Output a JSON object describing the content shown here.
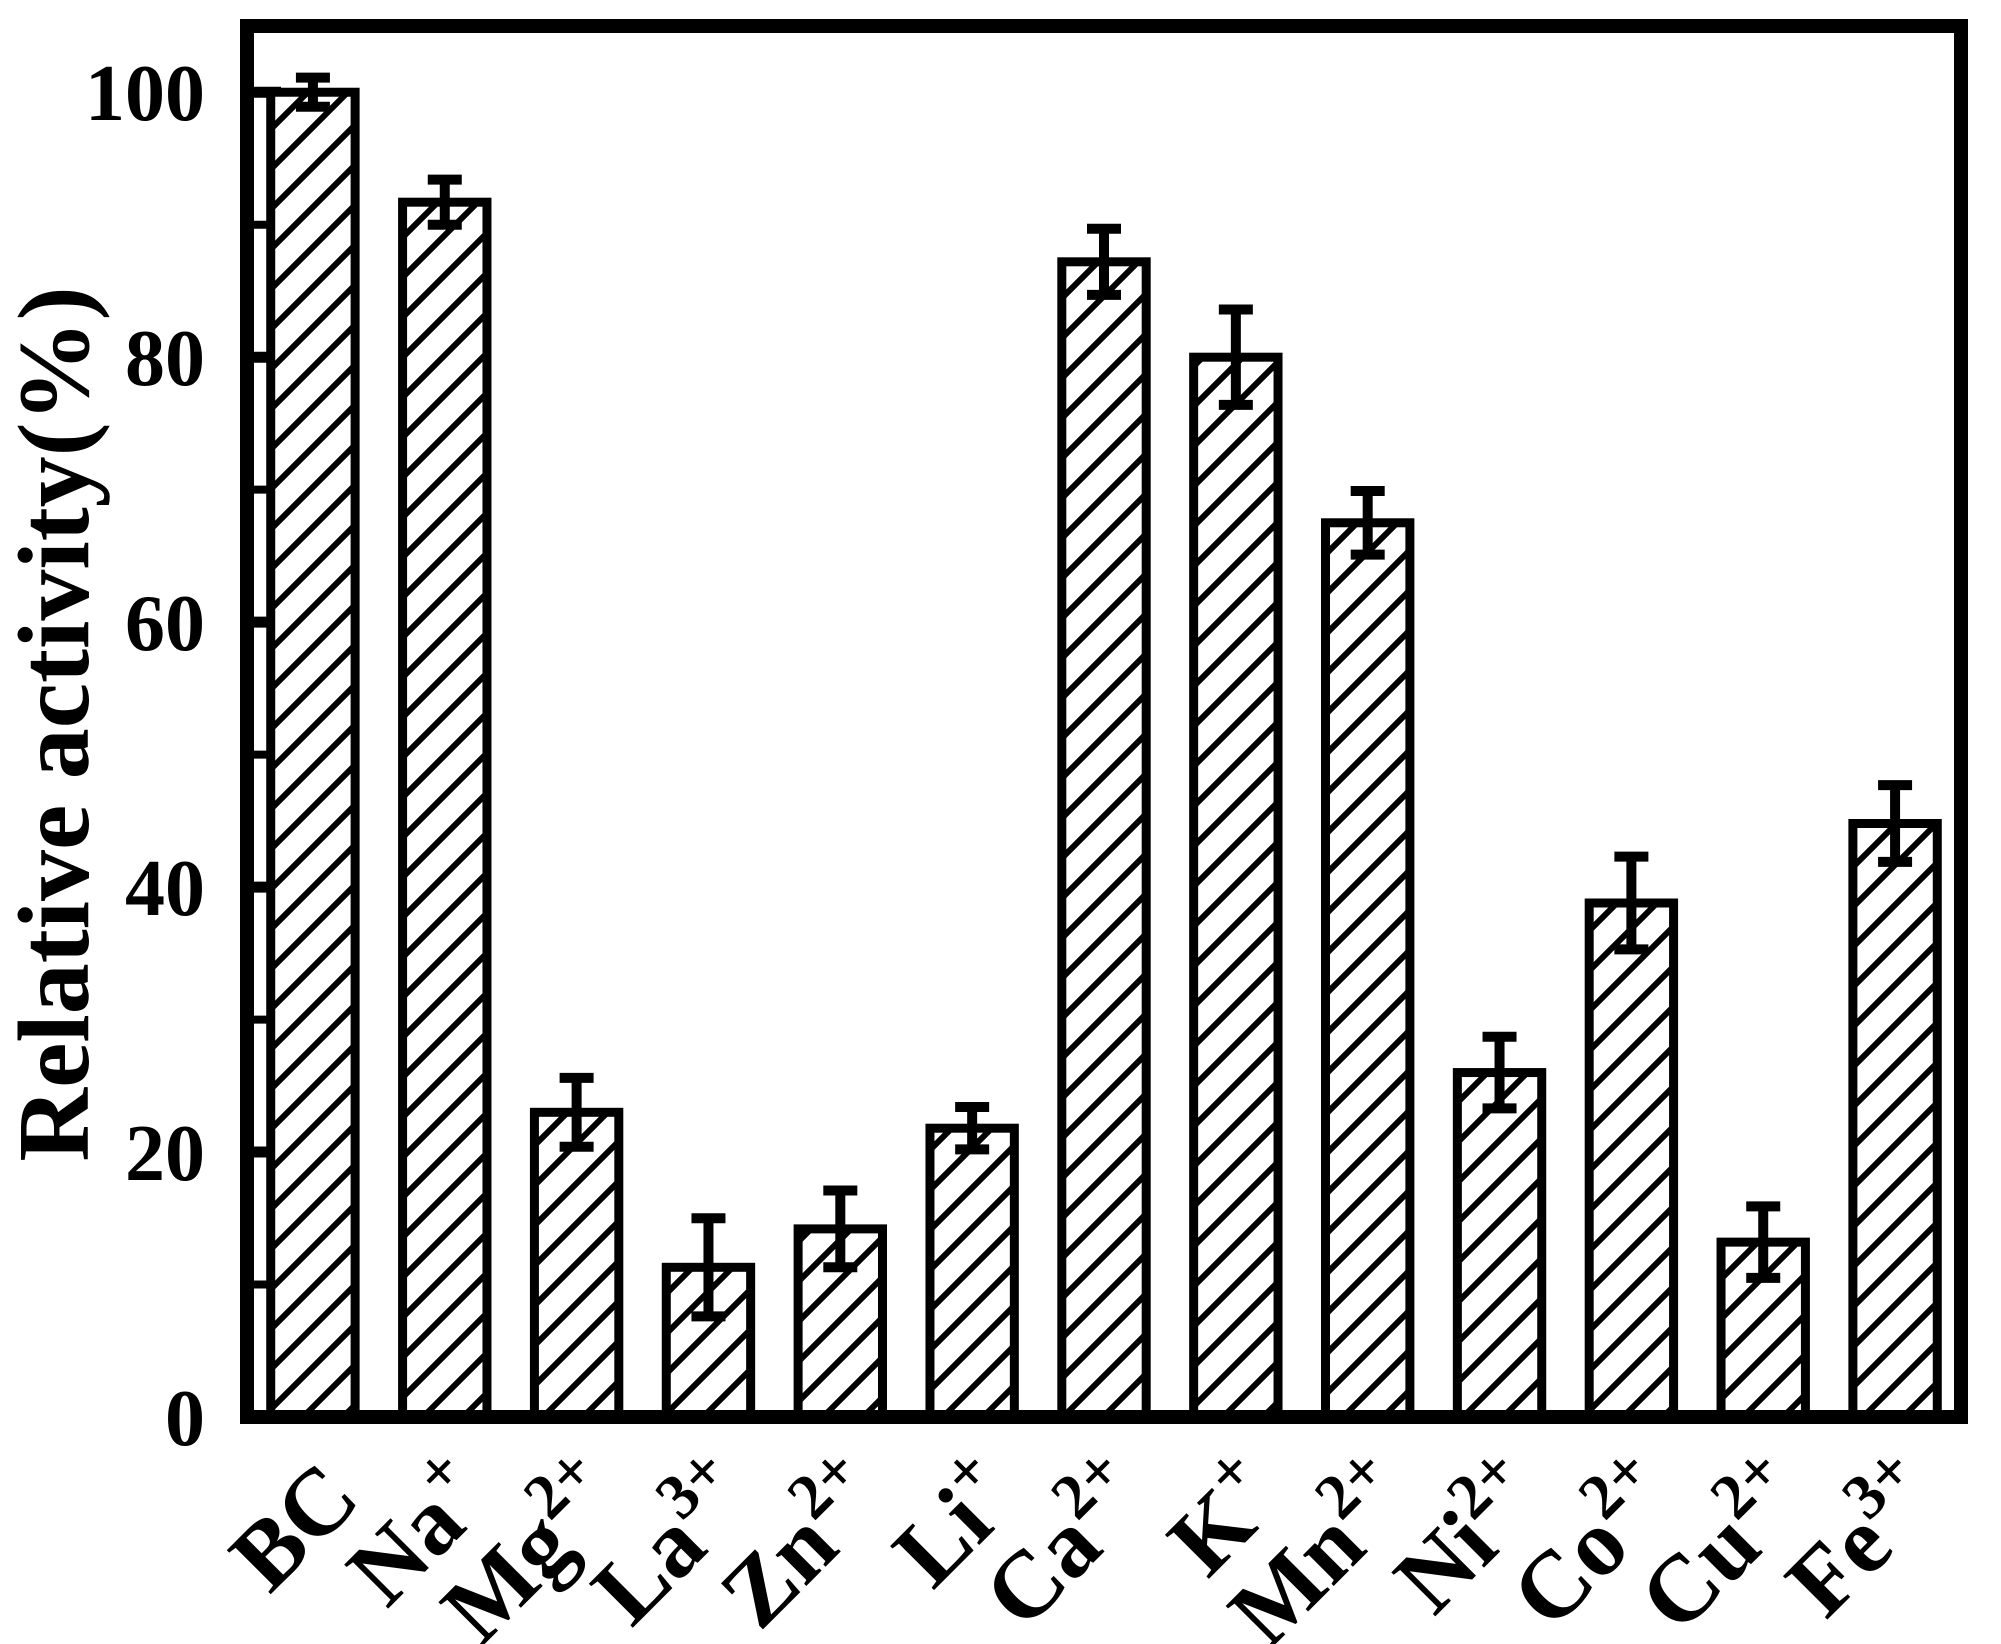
{
  "chart_data": {
    "type": "bar",
    "title": "",
    "ylabel": "Relative activity(%)",
    "xlabel": "",
    "ylim": [
      0,
      105
    ],
    "yticks": [
      0,
      20,
      40,
      60,
      80,
      100
    ],
    "minor_yticks": [
      10,
      30,
      50,
      70,
      90
    ],
    "categories": [
      "BC",
      "Na+",
      "Mg2+",
      "La3+",
      "Zn2+",
      "Li+",
      "Ca2+",
      "K+",
      "Mn2+",
      "Ni2+",
      "Co2+",
      "Cu2+",
      "Fe3+"
    ],
    "labels": [
      {
        "base": "BC",
        "sup": ""
      },
      {
        "base": "Na",
        "sup": "+"
      },
      {
        "base": "Mg",
        "sup": "2+"
      },
      {
        "base": "La",
        "sup": "3+"
      },
      {
        "base": "Zn",
        "sup": "2+"
      },
      {
        "base": "Li",
        "sup": "+"
      },
      {
        "base": "Ca",
        "sup": "2+"
      },
      {
        "base": "K",
        "sup": "+"
      },
      {
        "base": "Mn",
        "sup": "2+"
      },
      {
        "base": "Ni",
        "sup": "2+"
      },
      {
        "base": "Co",
        "sup": "2+"
      },
      {
        "base": "Cu",
        "sup": "2+"
      },
      {
        "base": "Fe",
        "sup": "3+"
      }
    ],
    "values": [
      100,
      91.7,
      23,
      11.3,
      14.2,
      21.8,
      87.2,
      80,
      67.5,
      26,
      38.8,
      13.2,
      44.8
    ],
    "errors": [
      1.1,
      1.7,
      2.6,
      3.7,
      2.9,
      1.6,
      2.5,
      3.6,
      2.4,
      2.7,
      3.5,
      2.7,
      2.9
    ],
    "bar_style": {
      "fill": "diagonal-hatch",
      "hatch_angle_deg": 45,
      "ink": "#000000",
      "background": "#ffffff"
    },
    "grid": false,
    "legend": null
  }
}
